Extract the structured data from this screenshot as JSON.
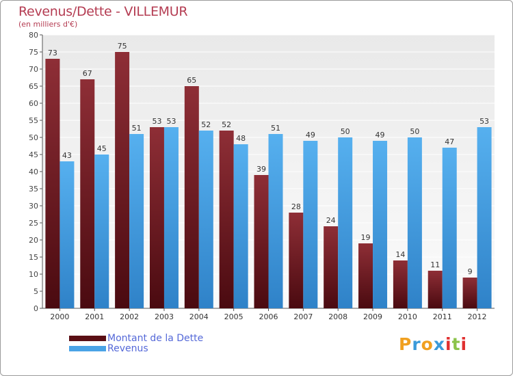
{
  "chart_data": {
    "type": "bar",
    "title": "Revenus/Dette - VILLEMUR",
    "subtitle": "(en milliers d'€)",
    "categories": [
      "2000",
      "2001",
      "2002",
      "2003",
      "2004",
      "2005",
      "2006",
      "2007",
      "2008",
      "2009",
      "2010",
      "2011",
      "2012"
    ],
    "series": [
      {
        "name": "Montant de la Dette",
        "color": "#7a1f26",
        "values": [
          73,
          67,
          75,
          53,
          65,
          52,
          39,
          28,
          24,
          19,
          14,
          11,
          9
        ]
      },
      {
        "name": "Revenus",
        "color": "#4aa3e6",
        "values": [
          43,
          45,
          51,
          53,
          52,
          48,
          51,
          49,
          50,
          49,
          50,
          47,
          53
        ]
      }
    ],
    "ylim": [
      0,
      80
    ],
    "ytick_step": 5,
    "grid": true,
    "legend_position": "bottom-left"
  },
  "logo": {
    "letters": [
      "P",
      "r",
      "o",
      "x",
      "i",
      "t",
      "i"
    ],
    "colors": [
      "#f0a020",
      "#3a9ad9",
      "#f0a020",
      "#3a9ad9",
      "#e03030",
      "#8bc34a",
      "#e03030"
    ]
  }
}
